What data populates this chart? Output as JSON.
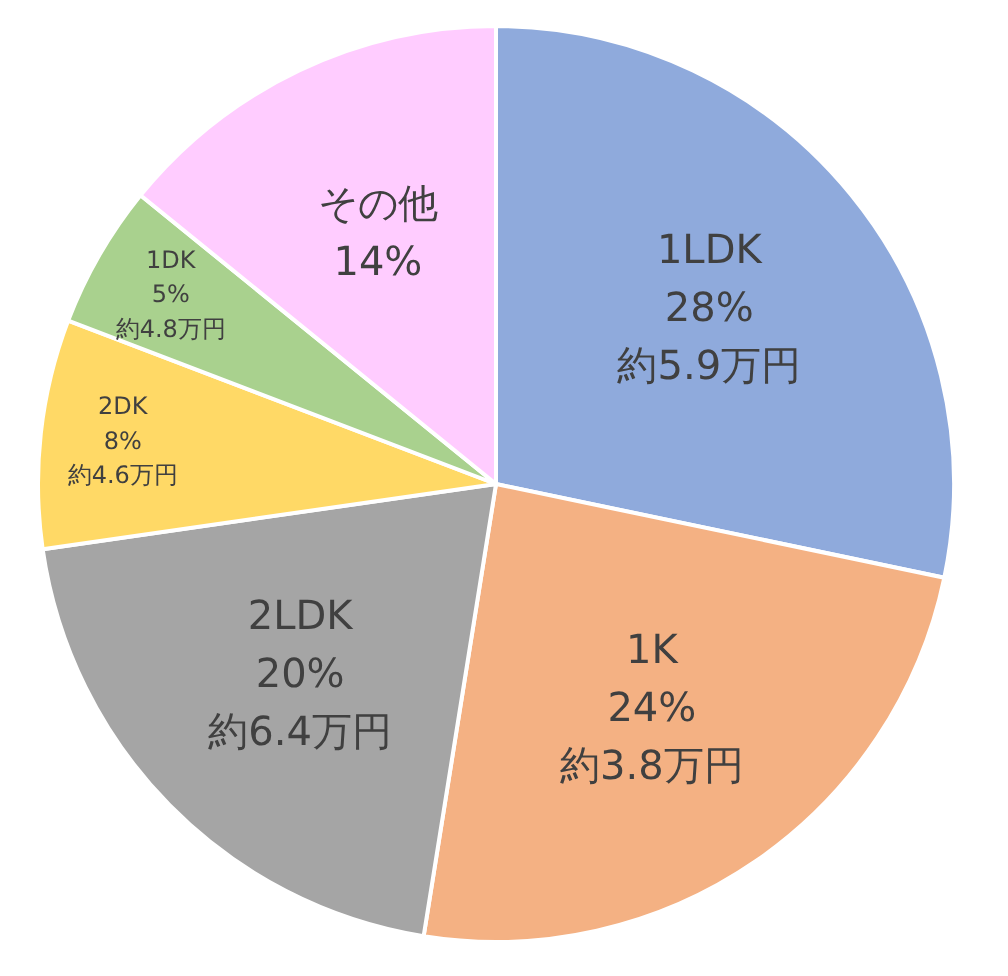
{
  "chart_data": {
    "type": "pie",
    "categories": [
      "1LDK",
      "1K",
      "2LDK",
      "2DK",
      "1DK",
      "その他"
    ],
    "values": [
      28,
      24,
      20,
      8,
      5,
      14
    ],
    "value_labels": [
      "28%\n約5.9万円",
      "24%\n約3.8万円",
      "20%\n約6.4万円",
      "8%\n約4.6万円",
      "5%\n約4.8万円",
      "14%"
    ],
    "colors": [
      "#8faadc",
      "#f4b183",
      "#a5a5a5",
      "#ffd966",
      "#a9d18e",
      "#ffccff"
    ],
    "legend": false
  }
}
